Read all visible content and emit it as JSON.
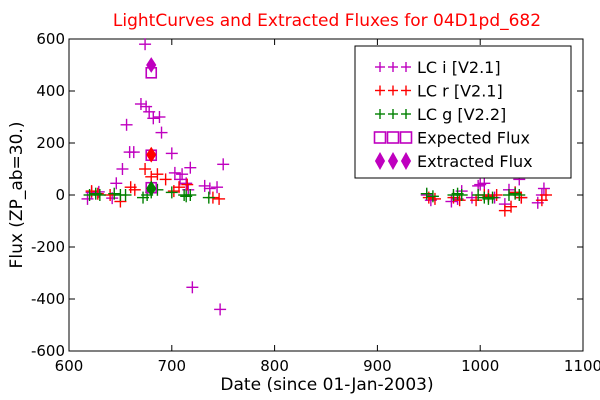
{
  "chart_data": {
    "type": "scatter",
    "title": "LightCurves and Extracted Fluxes for 04D1pd_682",
    "xlabel": "Date (since 01-Jan-2003)",
    "ylabel": "Flux (ZP_ab=30.)",
    "xlim": [
      600,
      1100
    ],
    "ylim": [
      -600,
      600
    ],
    "xticks": [
      600,
      700,
      800,
      900,
      1000,
      1100
    ],
    "yticks": [
      -600,
      -400,
      -200,
      0,
      200,
      400,
      600
    ],
    "grid": false,
    "legend_position": "top-right",
    "title_color": "#ff0000",
    "series": [
      {
        "name": "LC i [V2.1]",
        "marker": "plus",
        "color": "#bf00bf",
        "points": [
          [
            618,
            -15
          ],
          [
            622,
            10
          ],
          [
            629,
            12
          ],
          [
            642,
            -12
          ],
          [
            646,
            45
          ],
          [
            652,
            100
          ],
          [
            656,
            270
          ],
          [
            659,
            165
          ],
          [
            663,
            165
          ],
          [
            670,
            350
          ],
          [
            674,
            580
          ],
          [
            675,
            340
          ],
          [
            678,
            320
          ],
          [
            682,
            295
          ],
          [
            688,
            300
          ],
          [
            690,
            240
          ],
          [
            700,
            160
          ],
          [
            703,
            85
          ],
          [
            708,
            60
          ],
          [
            710,
            80
          ],
          [
            714,
            45
          ],
          [
            716,
            20
          ],
          [
            718,
            105
          ],
          [
            720,
            -355
          ],
          [
            732,
            35
          ],
          [
            737,
            25
          ],
          [
            744,
            30
          ],
          [
            747,
            -440
          ],
          [
            750,
            118
          ],
          [
            948,
            0
          ],
          [
            952,
            -20
          ],
          [
            972,
            -25
          ],
          [
            978,
            -15
          ],
          [
            982,
            15
          ],
          [
            992,
            -10
          ],
          [
            998,
            35
          ],
          [
            1000,
            40
          ],
          [
            1004,
            45
          ],
          [
            1008,
            0
          ],
          [
            1014,
            -10
          ],
          [
            1024,
            -35
          ],
          [
            1028,
            20
          ],
          [
            1034,
            10
          ],
          [
            1038,
            60
          ],
          [
            1040,
            -10
          ],
          [
            1056,
            -30
          ],
          [
            1060,
            0
          ],
          [
            1062,
            25
          ]
        ]
      },
      {
        "name": "LC r [V2.1]",
        "marker": "plus",
        "color": "#ff0000",
        "points": [
          [
            622,
            15
          ],
          [
            628,
            5
          ],
          [
            640,
            0
          ],
          [
            650,
            -25
          ],
          [
            660,
            30
          ],
          [
            664,
            20
          ],
          [
            674,
            100
          ],
          [
            680,
            70
          ],
          [
            686,
            80
          ],
          [
            694,
            60
          ],
          [
            702,
            15
          ],
          [
            707,
            30
          ],
          [
            715,
            40
          ],
          [
            740,
            -10
          ],
          [
            746,
            -15
          ],
          [
            950,
            -10
          ],
          [
            956,
            -15
          ],
          [
            974,
            -10
          ],
          [
            980,
            -20
          ],
          [
            996,
            -20
          ],
          [
            1004,
            0
          ],
          [
            1008,
            -5
          ],
          [
            1016,
            0
          ],
          [
            1024,
            -60
          ],
          [
            1030,
            -45
          ],
          [
            1034,
            10
          ],
          [
            1040,
            -10
          ],
          [
            1060,
            -20
          ],
          [
            1064,
            0
          ]
        ]
      },
      {
        "name": "LC g [V2.2]",
        "marker": "plus",
        "color": "#008000",
        "points": [
          [
            620,
            0
          ],
          [
            626,
            5
          ],
          [
            630,
            0
          ],
          [
            644,
            5
          ],
          [
            650,
            0
          ],
          [
            655,
            0
          ],
          [
            672,
            -10
          ],
          [
            676,
            0
          ],
          [
            680,
            10
          ],
          [
            686,
            20
          ],
          [
            700,
            10
          ],
          [
            712,
            0
          ],
          [
            714,
            -5
          ],
          [
            718,
            0
          ],
          [
            736,
            -10
          ],
          [
            948,
            5
          ],
          [
            954,
            -5
          ],
          [
            974,
            0
          ],
          [
            978,
            5
          ],
          [
            982,
            0
          ],
          [
            998,
            0
          ],
          [
            1004,
            -10
          ],
          [
            1008,
            -15
          ],
          [
            1012,
            -10
          ],
          [
            1028,
            0
          ],
          [
            1034,
            5
          ],
          [
            1038,
            0
          ]
        ]
      },
      {
        "name": "Expected Flux",
        "marker": "square",
        "color": "#bf00bf",
        "points": [
          [
            680,
            470
          ],
          [
            680,
            153
          ],
          [
            680,
            28
          ]
        ]
      },
      {
        "name": "Extracted Flux",
        "marker": "diamond",
        "color": "#bf00bf",
        "points": [
          [
            680,
            500
          ],
          [
            680,
            155
          ],
          [
            680,
            25
          ]
        ],
        "point_colors": [
          "#bf00bf",
          "#ff0000",
          "#008000"
        ]
      }
    ]
  }
}
